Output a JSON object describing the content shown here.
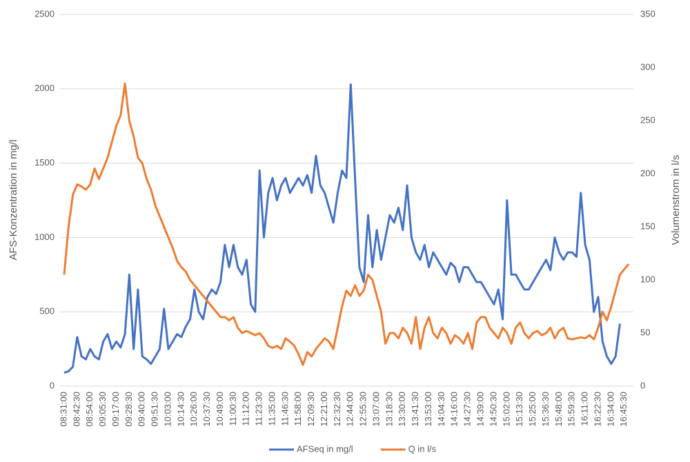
{
  "chart_data": {
    "type": "line",
    "categories": [
      "08:31:00",
      null,
      null,
      "08:42:30",
      null,
      null,
      "08:54:00",
      null,
      null,
      "09:05:30",
      null,
      null,
      "09:17:00",
      null,
      null,
      "09:28:30",
      null,
      null,
      "09:40:00",
      null,
      null,
      "09:51:30",
      null,
      null,
      "10:03:00",
      null,
      null,
      "10:14:30",
      null,
      null,
      "10:26:00",
      null,
      null,
      "10:37:30",
      null,
      null,
      "10:49:00",
      null,
      null,
      "11:00:30",
      null,
      null,
      "11:12:00",
      null,
      null,
      "11:23:30",
      null,
      null,
      "11:35:00",
      null,
      null,
      "11:46:30",
      null,
      null,
      "11:58:00",
      null,
      null,
      "12:09:30",
      null,
      null,
      "12:21:00",
      null,
      null,
      "12:32:30",
      null,
      null,
      "12:44:00",
      null,
      null,
      "12:55:30",
      null,
      null,
      "13:07:00",
      null,
      null,
      "13:18:30",
      null,
      null,
      "13:30:00",
      null,
      null,
      "13:41:30",
      null,
      null,
      "13:53:00",
      null,
      null,
      "14:04:30",
      null,
      null,
      "14:16:00",
      null,
      null,
      "14:27:30",
      null,
      null,
      "14:39:00",
      null,
      null,
      "14:50:30",
      null,
      null,
      "15:02:00",
      null,
      null,
      "15:13:30",
      null,
      null,
      "15:25:00",
      null,
      null,
      "15:36:30",
      null,
      null,
      "15:48:00",
      null,
      null,
      "15:59:30",
      null,
      null,
      "16:11:00",
      null,
      null,
      "16:22:30",
      null,
      null,
      "16:34:00",
      null,
      null,
      "16:45:30",
      null
    ],
    "series": [
      {
        "name": "AFSeq in mg/l",
        "color": "#4472c4",
        "axis": "y",
        "values": [
          90,
          100,
          130,
          330,
          200,
          180,
          250,
          200,
          180,
          300,
          350,
          250,
          300,
          260,
          350,
          750,
          250,
          650,
          200,
          180,
          150,
          200,
          250,
          520,
          250,
          300,
          350,
          330,
          400,
          450,
          650,
          500,
          450,
          600,
          650,
          620,
          700,
          950,
          800,
          950,
          800,
          750,
          850,
          550,
          500,
          1450,
          1000,
          1300,
          1400,
          1250,
          1350,
          1400,
          1300,
          1350,
          1400,
          1350,
          1420,
          1300,
          1550,
          1350,
          1300,
          1200,
          1100,
          1300,
          1450,
          1400,
          2030,
          1400,
          800,
          700,
          1150,
          800,
          1050,
          850,
          1000,
          1150,
          1100,
          1200,
          1050,
          1350,
          1000,
          900,
          850,
          950,
          800,
          900,
          850,
          800,
          750,
          830,
          800,
          700,
          800,
          800,
          750,
          700,
          700,
          650,
          600,
          550,
          650,
          450,
          1250,
          750,
          750,
          700,
          650,
          650,
          700,
          750,
          800,
          850,
          780,
          1000,
          900,
          850,
          900,
          900,
          870,
          1300,
          950,
          850,
          500,
          600,
          300,
          200,
          150,
          200,
          420,
          null,
          null
        ]
      },
      {
        "name": "Q in l/s",
        "color": "#ed7d31",
        "axis": "y2",
        "values": [
          105,
          150,
          180,
          190,
          188,
          185,
          190,
          205,
          195,
          205,
          215,
          230,
          245,
          255,
          285,
          250,
          235,
          215,
          210,
          195,
          185,
          170,
          160,
          150,
          140,
          130,
          118,
          112,
          108,
          100,
          95,
          90,
          85,
          80,
          75,
          70,
          65,
          65,
          62,
          65,
          55,
          50,
          52,
          50,
          48,
          50,
          45,
          38,
          36,
          38,
          35,
          45,
          42,
          38,
          30,
          20,
          32,
          28,
          35,
          40,
          45,
          42,
          35,
          55,
          75,
          90,
          85,
          95,
          85,
          90,
          105,
          100,
          85,
          70,
          40,
          50,
          50,
          45,
          55,
          50,
          40,
          65,
          35,
          55,
          65,
          50,
          45,
          55,
          50,
          40,
          48,
          45,
          40,
          50,
          35,
          60,
          65,
          65,
          55,
          50,
          45,
          55,
          50,
          40,
          55,
          60,
          50,
          45,
          50,
          52,
          48,
          50,
          55,
          45,
          52,
          55,
          45,
          44,
          45,
          46,
          45,
          48,
          44,
          55,
          70,
          62,
          75,
          90,
          105,
          110,
          115
        ]
      }
    ],
    "ylabel": "AFS-Konzentration in mg/l",
    "y2label": "Volumenstrom in l/s",
    "ylim": [
      0,
      2500
    ],
    "yticks": [
      0,
      500,
      1000,
      1500,
      2000,
      2500
    ],
    "y2lim": [
      0,
      350
    ],
    "y2ticks": [
      0,
      50,
      100,
      150,
      200,
      250,
      300,
      350
    ],
    "grid": true,
    "legend": "bottom"
  }
}
